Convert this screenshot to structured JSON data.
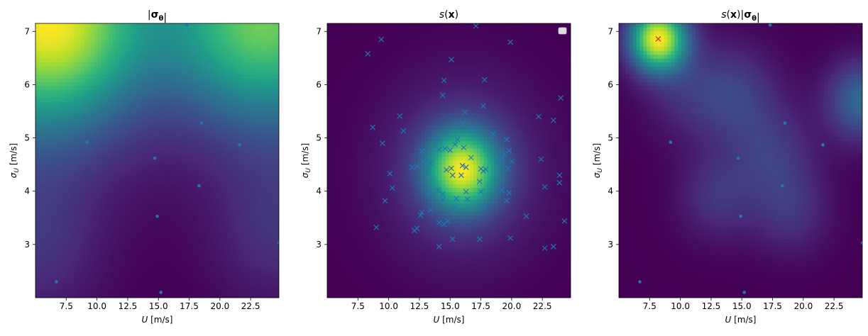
{
  "colors": {
    "viridis": [
      "#440154",
      "#482878",
      "#3e4989",
      "#31688e",
      "#26828e",
      "#1f9e89",
      "#35b779",
      "#6ece58",
      "#b5de2b",
      "#fde725"
    ],
    "scatter": "#1f77b4",
    "highlight_marker": "#d62728"
  },
  "chart_data": [
    {
      "type": "heatmap",
      "title": "|σθ|",
      "xlabel": "U [m/s]",
      "ylabel": "σU [m/s]",
      "xlim": [
        5.0,
        24.8
      ],
      "ylim": [
        2.0,
        7.15
      ],
      "xticks": [
        "7.5",
        "10.0",
        "12.5",
        "15.0",
        "17.5",
        "20.0",
        "22.5"
      ],
      "yticks": [
        "3",
        "4",
        "5",
        "6",
        "7"
      ],
      "field": [
        {
          "x": 5.0,
          "y": 7.15,
          "v": 1.0,
          "s": 5.0
        },
        {
          "x": 7.2,
          "y": 7.15,
          "v": 0.45,
          "s": 3.5
        },
        {
          "x": 24.8,
          "y": 7.15,
          "v": 0.9,
          "s": 4.5
        },
        {
          "x": 21.0,
          "y": 7.15,
          "v": 0.25,
          "s": 3.5
        },
        {
          "x": 5.0,
          "y": 3.0,
          "v": 0.2,
          "s": 3.0
        },
        {
          "x": 24.8,
          "y": 3.3,
          "v": 0.2,
          "s": 3.0
        },
        {
          "x": 15.0,
          "y": 7.15,
          "v": 0.08,
          "s": 3.0
        }
      ],
      "points": [
        {
          "x": 6.7,
          "y": 2.3
        },
        {
          "x": 9.2,
          "y": 4.92
        },
        {
          "x": 14.7,
          "y": 4.62
        },
        {
          "x": 14.9,
          "y": 3.53
        },
        {
          "x": 15.2,
          "y": 2.1
        },
        {
          "x": 18.3,
          "y": 4.1
        },
        {
          "x": 18.5,
          "y": 5.28
        },
        {
          "x": 21.6,
          "y": 4.87
        },
        {
          "x": 17.3,
          "y": 7.12
        },
        {
          "x": 24.8,
          "y": 3.03
        }
      ],
      "marker": "dot"
    },
    {
      "type": "heatmap",
      "title": "s(x)",
      "xlabel": "U [m/s]",
      "ylabel": "σU [m/s]",
      "xlim": [
        5.0,
        24.8
      ],
      "ylim": [
        2.0,
        7.15
      ],
      "xticks": [
        "7.5",
        "10.0",
        "12.5",
        "15.0",
        "17.5",
        "20.0",
        "22.5"
      ],
      "yticks": [
        "3",
        "4",
        "5",
        "6",
        "7"
      ],
      "legend": "top-right",
      "field": [
        {
          "x": 16.0,
          "y": 4.4,
          "v": 1.0,
          "s": 1.6
        },
        {
          "x": 16.0,
          "y": 4.4,
          "v": 0.25,
          "s": 3.5
        }
      ],
      "points": [
        {
          "x": 8.3,
          "y": 6.58
        },
        {
          "x": 9.4,
          "y": 6.85
        },
        {
          "x": 15.1,
          "y": 6.47
        },
        {
          "x": 17.1,
          "y": 7.1
        },
        {
          "x": 19.9,
          "y": 6.8
        },
        {
          "x": 14.5,
          "y": 6.08
        },
        {
          "x": 17.8,
          "y": 6.09
        },
        {
          "x": 14.4,
          "y": 5.8
        },
        {
          "x": 24.0,
          "y": 5.75
        },
        {
          "x": 16.2,
          "y": 5.48
        },
        {
          "x": 17.7,
          "y": 5.6
        },
        {
          "x": 10.9,
          "y": 5.41
        },
        {
          "x": 22.2,
          "y": 5.4
        },
        {
          "x": 16.0,
          "y": 5.27
        },
        {
          "x": 23.4,
          "y": 5.33
        },
        {
          "x": 8.7,
          "y": 5.2
        },
        {
          "x": 11.2,
          "y": 5.13
        },
        {
          "x": 16.7,
          "y": 5.17
        },
        {
          "x": 17.2,
          "y": 5.15
        },
        {
          "x": 18.5,
          "y": 5.07
        },
        {
          "x": 9.5,
          "y": 4.9
        },
        {
          "x": 14.0,
          "y": 4.96
        },
        {
          "x": 15.6,
          "y": 4.97
        },
        {
          "x": 19.6,
          "y": 4.97
        },
        {
          "x": 14.1,
          "y": 4.78
        },
        {
          "x": 14.6,
          "y": 4.8
        },
        {
          "x": 15.0,
          "y": 4.77
        },
        {
          "x": 16.1,
          "y": 4.82
        },
        {
          "x": 12.7,
          "y": 4.75
        },
        {
          "x": 13.4,
          "y": 4.52
        },
        {
          "x": 12.8,
          "y": 4.56
        },
        {
          "x": 15.4,
          "y": 4.88
        },
        {
          "x": 19.4,
          "y": 4.7
        },
        {
          "x": 19.8,
          "y": 4.76
        },
        {
          "x": 19.2,
          "y": 4.62
        },
        {
          "x": 22.4,
          "y": 4.6
        },
        {
          "x": 20.0,
          "y": 4.56
        },
        {
          "x": 18.9,
          "y": 4.53
        },
        {
          "x": 11.9,
          "y": 4.45
        },
        {
          "x": 12.3,
          "y": 4.47
        },
        {
          "x": 13.1,
          "y": 4.37
        },
        {
          "x": 14.7,
          "y": 4.4
        },
        {
          "x": 15.1,
          "y": 4.43
        },
        {
          "x": 16.0,
          "y": 4.48
        },
        {
          "x": 16.3,
          "y": 4.45
        },
        {
          "x": 16.7,
          "y": 4.63
        },
        {
          "x": 17.5,
          "y": 4.42
        },
        {
          "x": 17.7,
          "y": 4.38
        },
        {
          "x": 17.9,
          "y": 4.41
        },
        {
          "x": 19.7,
          "y": 4.43
        },
        {
          "x": 10.1,
          "y": 4.33
        },
        {
          "x": 15.2,
          "y": 4.3
        },
        {
          "x": 15.9,
          "y": 4.3
        },
        {
          "x": 17.4,
          "y": 4.18
        },
        {
          "x": 23.9,
          "y": 4.3
        },
        {
          "x": 23.9,
          "y": 4.16
        },
        {
          "x": 22.7,
          "y": 4.08
        },
        {
          "x": 10.3,
          "y": 4.06
        },
        {
          "x": 13.3,
          "y": 3.98
        },
        {
          "x": 14.0,
          "y": 4.02
        },
        {
          "x": 14.4,
          "y": 3.95
        },
        {
          "x": 16.3,
          "y": 3.99
        },
        {
          "x": 17.5,
          "y": 3.99
        },
        {
          "x": 19.2,
          "y": 4.02
        },
        {
          "x": 19.8,
          "y": 3.97
        },
        {
          "x": 14.4,
          "y": 3.84
        },
        {
          "x": 15.5,
          "y": 3.86
        },
        {
          "x": 16.4,
          "y": 3.85
        },
        {
          "x": 9.7,
          "y": 3.82
        },
        {
          "x": 19.6,
          "y": 3.82
        },
        {
          "x": 15.4,
          "y": 3.69
        },
        {
          "x": 17.7,
          "y": 3.7
        },
        {
          "x": 13.4,
          "y": 3.65
        },
        {
          "x": 12.7,
          "y": 3.6
        },
        {
          "x": 12.6,
          "y": 3.55
        },
        {
          "x": 21.2,
          "y": 3.53
        },
        {
          "x": 14.1,
          "y": 3.41
        },
        {
          "x": 14.8,
          "y": 3.44
        },
        {
          "x": 14.5,
          "y": 3.38
        },
        {
          "x": 24.3,
          "y": 3.44
        },
        {
          "x": 9.0,
          "y": 3.32
        },
        {
          "x": 12.1,
          "y": 3.26
        },
        {
          "x": 12.3,
          "y": 3.3
        },
        {
          "x": 17.4,
          "y": 3.1
        },
        {
          "x": 19.9,
          "y": 3.12
        },
        {
          "x": 15.2,
          "y": 3.1
        },
        {
          "x": 14.1,
          "y": 2.96
        },
        {
          "x": 22.7,
          "y": 2.93
        },
        {
          "x": 23.4,
          "y": 2.96
        }
      ],
      "marker": "x"
    },
    {
      "type": "heatmap",
      "title": "s(x)|σθ|",
      "xlabel": "U [m/s]",
      "ylabel": "σU [m/s]",
      "xlim": [
        5.0,
        24.8
      ],
      "ylim": [
        2.0,
        7.15
      ],
      "xticks": [
        "7.5",
        "10.0",
        "12.5",
        "15.0",
        "17.5",
        "20.0",
        "22.5"
      ],
      "yticks": [
        "3",
        "4",
        "5",
        "6",
        "7"
      ],
      "field": [
        {
          "x": 8.2,
          "y": 6.86,
          "v": 1.0,
          "s": 1.3
        },
        {
          "x": 24.8,
          "y": 5.7,
          "v": 0.35,
          "s": 1.6
        },
        {
          "x": 14.5,
          "y": 5.8,
          "v": 0.18,
          "s": 2.0
        },
        {
          "x": 17.5,
          "y": 4.7,
          "v": 0.16,
          "s": 2.0
        },
        {
          "x": 13.0,
          "y": 3.9,
          "v": 0.15,
          "s": 1.8
        },
        {
          "x": 19.0,
          "y": 3.6,
          "v": 0.14,
          "s": 1.8
        },
        {
          "x": 10.5,
          "y": 5.9,
          "v": 0.12,
          "s": 2.0
        }
      ],
      "points": [
        {
          "x": 6.7,
          "y": 2.3
        },
        {
          "x": 9.2,
          "y": 4.92
        },
        {
          "x": 14.7,
          "y": 4.62
        },
        {
          "x": 14.9,
          "y": 3.53
        },
        {
          "x": 15.2,
          "y": 2.1
        },
        {
          "x": 18.3,
          "y": 4.1
        },
        {
          "x": 18.5,
          "y": 5.28
        },
        {
          "x": 21.6,
          "y": 4.87
        },
        {
          "x": 17.3,
          "y": 7.12
        },
        {
          "x": 24.8,
          "y": 3.03
        }
      ],
      "marker": "dot",
      "highlight": {
        "x": 8.2,
        "y": 6.86
      }
    }
  ]
}
